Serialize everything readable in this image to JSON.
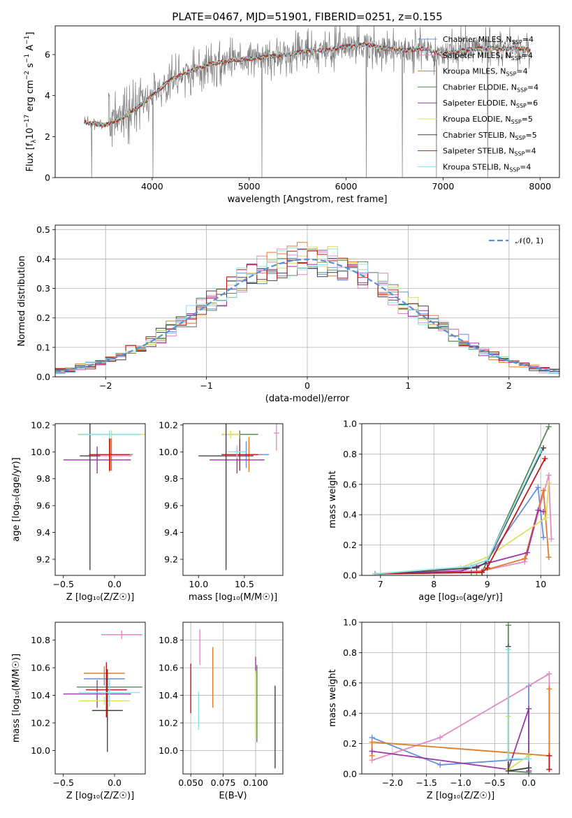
{
  "colors": {
    "Chabrier MILES": "#6a8fdb",
    "Salpeter MILES": "#e58ac2",
    "Kroupa MILES": "#e07b2a",
    "Chabrier ELODIE": "#5a8a5a",
    "Salpeter ELODIE": "#9a37a8",
    "Kroupa ELODIE": "#d8e060",
    "Chabrier STELIB": "#444444",
    "Salpeter STELIB": "#c01818",
    "Kroupa STELIB": "#90e0e8",
    "data": "#7a7a7a",
    "gauss": "#5a8fd8"
  },
  "chart_data": [
    {
      "id": "spectrum",
      "type": "line",
      "title": "PLATE=0467, MJD=51901, FIBERID=0251, z=0.155",
      "xlabel": "wavelength [Angstrom, rest frame]",
      "ylabel": "Flux [f_λ 10^-17 erg cm^-2 s^-1 A^-1]",
      "xlim": [
        3000,
        8200
      ],
      "ylim": [
        0,
        7.4
      ],
      "xticks": [
        "4000",
        "5000",
        "6000",
        "7000",
        "8000"
      ],
      "yticks": [
        "0",
        "2",
        "4",
        "6"
      ],
      "grid": false,
      "legend": "top-right",
      "legend_entries": [
        {
          "model": "Chabrier MILES",
          "nssp": "4"
        },
        {
          "model": "Salpeter MILES",
          "nssp": "4"
        },
        {
          "model": "Kroupa MILES",
          "nssp": "4"
        },
        {
          "model": "Chabrier ELODIE",
          "nssp": "4"
        },
        {
          "model": "Salpeter ELODIE",
          "nssp": "6"
        },
        {
          "model": "Kroupa ELODIE",
          "nssp": "5"
        },
        {
          "model": "Chabrier STELIB",
          "nssp": "5"
        },
        {
          "model": "Salpeter STELIB",
          "nssp": "4"
        },
        {
          "model": "Kroupa STELIB",
          "nssp": "4"
        }
      ],
      "continuum": {
        "x": [
          3300,
          3500,
          3700,
          3900,
          4000,
          4200,
          4400,
          4600,
          4800,
          5000,
          5200,
          5400,
          5600,
          5800,
          6000,
          6200,
          6400,
          6600,
          6800,
          7000,
          7200,
          7400,
          7600,
          7800,
          7900
        ],
        "y": [
          2.7,
          2.55,
          2.9,
          3.6,
          4.0,
          4.8,
          5.2,
          5.55,
          5.7,
          5.8,
          5.9,
          6.0,
          6.2,
          6.2,
          6.4,
          6.5,
          6.3,
          6.2,
          6.3,
          6.0,
          6.2,
          6.3,
          6.3,
          6.3,
          6.2
        ]
      }
    },
    {
      "id": "residuals",
      "type": "histogram",
      "xlabel": "(data-model)/error",
      "ylabel": "Normed distribution",
      "xlim": [
        -2.5,
        2.5
      ],
      "ylim": [
        0,
        0.515
      ],
      "xticks": [
        "−2",
        "−1",
        "0",
        "1",
        "2"
      ],
      "yticks": [
        "0.0",
        "0.1",
        "0.2",
        "0.3",
        "0.4",
        "0.5"
      ],
      "grid": true,
      "legend": "top-right",
      "legend_label": "𝒩(0, 1)",
      "bin_width": 0.1
    },
    {
      "id": "age_vs_Z",
      "type": "errorbar",
      "xlabel": "Z [log₁₀(Z/Z☉)]",
      "ylabel": "age  [log₁₀(age/yr)]",
      "xlim": [
        -0.58,
        0.3
      ],
      "ylim": [
        9.08,
        10.21
      ],
      "xticks": [
        "−0.5",
        "0.0"
      ],
      "yticks": [
        "9.2",
        "9.4",
        "9.6",
        "9.8",
        "10.0",
        "10.2"
      ],
      "points": [
        {
          "model": "Chabrier MILES",
          "x": -0.03,
          "xerr": 0.21,
          "y": 9.98,
          "yerr": 0.12
        },
        {
          "model": "Salpeter MILES",
          "x": -0.05,
          "xerr": 0.22,
          "y": 9.97,
          "yerr": 0.12
        },
        {
          "model": "Kroupa MILES",
          "x": -0.04,
          "xerr": 0.2,
          "y": 9.98,
          "yerr": 0.12
        },
        {
          "model": "Chabrier ELODIE",
          "x": -0.05,
          "xerr": 0.3,
          "y": 10.13,
          "yerr": 0.03
        },
        {
          "model": "Salpeter ELODIE",
          "x": -0.17,
          "xerr": 0.33,
          "y": 9.94,
          "yerr": 0.1
        },
        {
          "model": "Kroupa ELODIE",
          "x": -0.03,
          "xerr": 0.33,
          "y": 10.13,
          "yerr": 0.03
        },
        {
          "model": "Chabrier STELIB",
          "x": -0.24,
          "xerr": 0.1,
          "y": 9.97,
          "yerr": 0.85
        },
        {
          "model": "Salpeter STELIB",
          "x": -0.05,
          "xerr": 0.2,
          "y": 9.98,
          "yerr": 0.12
        },
        {
          "model": "Kroupa STELIB",
          "x": -0.05,
          "xerr": 0.3,
          "y": 10.13,
          "yerr": 0.03
        }
      ]
    },
    {
      "id": "age_vs_mass",
      "type": "errorbar",
      "xlabel": "mass [log₁₀(M/M☉)]",
      "ylabel": "",
      "xlim": [
        9.83,
        10.92
      ],
      "ylim": [
        9.08,
        10.21
      ],
      "xticks": [
        "10.0",
        "10.5"
      ],
      "yticks": [
        "9.2",
        "9.4",
        "9.6",
        "9.8",
        "10.0",
        "10.2"
      ],
      "points": [
        {
          "model": "Chabrier MILES",
          "x": 10.52,
          "xerr": 0.25,
          "y": 9.98,
          "yerr": 0.1
        },
        {
          "model": "Salpeter MILES",
          "x": 10.85,
          "xerr": 0.03,
          "y": 10.14,
          "yerr": 0.13
        },
        {
          "model": "Kroupa MILES",
          "x": 10.55,
          "xerr": 0.12,
          "y": 9.98,
          "yerr": 0.13
        },
        {
          "model": "Chabrier ELODIE",
          "x": 10.45,
          "xerr": 0.2,
          "y": 10.13,
          "yerr": 0.03
        },
        {
          "model": "Salpeter ELODIE",
          "x": 10.42,
          "xerr": 0.3,
          "y": 9.94,
          "yerr": 0.1
        },
        {
          "model": "Kroupa ELODIE",
          "x": 10.35,
          "xerr": 0.1,
          "y": 10.13,
          "yerr": 0.03
        },
        {
          "model": "Chabrier STELIB",
          "x": 10.3,
          "xerr": 0.3,
          "y": 9.97,
          "yerr": 0.85
        },
        {
          "model": "Salpeter STELIB",
          "x": 10.45,
          "xerr": 0.2,
          "y": 9.98,
          "yerr": 0.12
        },
        {
          "model": "Kroupa STELIB",
          "x": 10.42,
          "xerr": 0.1,
          "y": 10.0,
          "yerr": 0.05
        }
      ]
    },
    {
      "id": "massweight_vs_age",
      "type": "line",
      "xlabel": "age  [log₁₀(age/yr)]",
      "ylabel": "mass weight",
      "xlim": [
        6.65,
        10.35
      ],
      "ylim": [
        0,
        1.0
      ],
      "xticks": [
        "7",
        "8",
        "9",
        "10"
      ],
      "yticks": [
        "0.0",
        "0.2",
        "0.4",
        "0.6",
        "0.8",
        "1.0"
      ],
      "grid": true,
      "series": [
        {
          "model": "Chabrier MILES",
          "x": [
            6.9,
            8.6,
            9.0,
            9.95,
            10.05
          ],
          "y": [
            0.01,
            0.05,
            0.1,
            0.58,
            0.25
          ]
        },
        {
          "model": "Salpeter MILES",
          "x": [
            6.9,
            8.9,
            9.7,
            10.15,
            10.2
          ],
          "y": [
            0.01,
            0.03,
            0.09,
            0.66,
            0.24
          ]
        },
        {
          "model": "Kroupa MILES",
          "x": [
            6.9,
            8.8,
            9.7,
            10.05,
            10.15
          ],
          "y": [
            0.01,
            0.02,
            0.11,
            0.56,
            0.12
          ]
        },
        {
          "model": "Chabrier ELODIE",
          "x": [
            6.9,
            8.7,
            8.9,
            10.15
          ],
          "y": [
            0.01,
            0.02,
            0.02,
            0.98
          ]
        },
        {
          "model": "Salpeter ELODIE",
          "x": [
            6.9,
            8.5,
            9.0,
            9.75,
            9.95,
            10.05
          ],
          "y": [
            0.01,
            0.03,
            0.08,
            0.15,
            0.43,
            0.42
          ]
        },
        {
          "model": "Kroupa ELODIE",
          "x": [
            6.9,
            8.5,
            9.0,
            10.1,
            10.15
          ],
          "y": [
            0.01,
            0.05,
            0.12,
            0.38,
            0.61
          ]
        },
        {
          "model": "Chabrier STELIB",
          "x": [
            6.9,
            8.8,
            9.0,
            10.05
          ],
          "y": [
            0.01,
            0.05,
            0.09,
            0.84
          ]
        },
        {
          "model": "Salpeter STELIB",
          "x": [
            6.9,
            8.9,
            9.0,
            10.08
          ],
          "y": [
            0.01,
            0.02,
            0.05,
            0.77
          ]
        },
        {
          "model": "Kroupa STELIB",
          "x": [
            6.9,
            8.7,
            9.0,
            10.0
          ],
          "y": [
            0.01,
            0.06,
            0.1,
            0.82
          ]
        }
      ]
    },
    {
      "id": "mass_vs_Z",
      "type": "errorbar",
      "xlabel": "Z [log₁₀(Z/Z☉)]",
      "ylabel": "mass [log₁₀(M/M☉)]",
      "xlim": [
        -0.58,
        0.3
      ],
      "ylim": [
        9.83,
        10.93
      ],
      "xticks": [
        "−0.5",
        "0.0"
      ],
      "yticks": [
        "10.0",
        "10.2",
        "10.4",
        "10.6",
        "10.8"
      ],
      "points": [
        {
          "model": "Chabrier MILES",
          "x": -0.1,
          "xerr": 0.2,
          "y": 10.52,
          "yerr": 0.05
        },
        {
          "model": "Salpeter MILES",
          "x": 0.07,
          "xerr": 0.2,
          "y": 10.84,
          "yerr": 0.03
        },
        {
          "model": "Kroupa MILES",
          "x": -0.1,
          "xerr": 0.2,
          "y": 10.56,
          "yerr": 0.05
        },
        {
          "model": "Chabrier ELODIE",
          "x": -0.05,
          "xerr": 0.32,
          "y": 10.46,
          "yerr": 0.03
        },
        {
          "model": "Salpeter ELODIE",
          "x": -0.17,
          "xerr": 0.33,
          "y": 10.41,
          "yerr": 0.1
        },
        {
          "model": "Kroupa ELODIE",
          "x": -0.1,
          "xerr": 0.25,
          "y": 10.36,
          "yerr": 0.03
        },
        {
          "model": "Chabrier STELIB",
          "x": -0.07,
          "xerr": 0.15,
          "y": 10.29,
          "yerr": 0.3
        },
        {
          "model": "Salpeter STELIB",
          "x": -0.08,
          "xerr": 0.2,
          "y": 10.44,
          "yerr": 0.2
        },
        {
          "model": "Kroupa STELIB",
          "x": -0.05,
          "xerr": 0.3,
          "y": 10.42,
          "yerr": 0.1
        }
      ]
    },
    {
      "id": "mass_vs_ebv",
      "type": "errorbar",
      "xlabel": "E(B-V)",
      "ylabel": "",
      "xlim": [
        0.044,
        0.121
      ],
      "ylim": [
        9.83,
        10.93
      ],
      "xticks": [
        "0.050",
        "0.075",
        "0.100"
      ],
      "yticks": [
        "10.0",
        "10.2",
        "10.4",
        "10.6",
        "10.8"
      ],
      "points": [
        {
          "model": "Salpeter STELIB",
          "x": 0.05,
          "y": 10.45,
          "yerr": 0.18
        },
        {
          "model": "Kroupa STELIB",
          "x": 0.056,
          "y": 10.29,
          "yerr": 0.14
        },
        {
          "model": "Salpeter MILES",
          "x": 0.057,
          "y": 10.75,
          "yerr": 0.13
        },
        {
          "model": "Kroupa MILES",
          "x": 0.067,
          "y": 10.53,
          "yerr": 0.22
        },
        {
          "model": "Salpeter ELODIE",
          "x": 0.1,
          "y": 10.62,
          "yerr": 0.06
        },
        {
          "model": "Kroupa ELODIE",
          "x": 0.1,
          "y": 10.34,
          "yerr": 0.24
        },
        {
          "model": "Chabrier ELODIE",
          "x": 0.101,
          "y": 10.34,
          "yerr": 0.28
        },
        {
          "model": "Chabrier STELIB",
          "x": 0.115,
          "y": 10.17,
          "yerr": 0.3
        }
      ]
    },
    {
      "id": "massweight_vs_Z",
      "type": "line",
      "xlabel": "Z [log₁₀(Z/Z☉)]",
      "ylabel": "mass weight",
      "xlim": [
        -2.45,
        0.45
      ],
      "ylim": [
        0,
        1.0
      ],
      "xticks": [
        "−2.0",
        "−1.5",
        "−1.0",
        "−0.5",
        "0.0"
      ],
      "yticks": [
        "0.0",
        "0.2",
        "0.4",
        "0.6",
        "0.8",
        "1.0"
      ],
      "grid": true,
      "series": [
        {
          "model": "Chabrier MILES",
          "x": [
            -2.3,
            -1.3,
            0.0,
            0.0
          ],
          "y": [
            0.24,
            0.06,
            0.1,
            0.58
          ]
        },
        {
          "model": "Salpeter MILES",
          "x": [
            -2.3,
            -1.3,
            0.3,
            0.3
          ],
          "y": [
            0.09,
            0.24,
            0.66,
            0.03
          ]
        },
        {
          "model": "Kroupa MILES",
          "x": [
            -2.3,
            -2.3,
            0.3,
            0.3
          ],
          "y": [
            0.12,
            0.21,
            0.12,
            0.56
          ]
        },
        {
          "model": "Chabrier ELODIE",
          "x": [
            -0.3,
            -0.3,
            0.0
          ],
          "y": [
            0.98,
            0.02,
            0.01
          ]
        },
        {
          "model": "Salpeter ELODIE",
          "x": [
            -2.3,
            -0.3,
            0.0,
            0.0
          ],
          "y": [
            0.15,
            0.03,
            0.43,
            0.02
          ]
        },
        {
          "model": "Kroupa ELODIE",
          "x": [
            -0.3,
            -0.3,
            0.0
          ],
          "y": [
            0.38,
            0.03,
            0.12
          ]
        },
        {
          "model": "Chabrier STELIB",
          "x": [
            -0.3,
            -0.3,
            0.0
          ],
          "y": [
            0.84,
            0.02,
            0.04
          ]
        },
        {
          "model": "Salpeter STELIB",
          "x": [
            0.3,
            0.3
          ],
          "y": [
            0.03,
            0.12
          ]
        },
        {
          "model": "Kroupa STELIB",
          "x": [
            -0.3,
            -0.3,
            0.0
          ],
          "y": [
            0.82,
            0.1,
            0.1
          ]
        }
      ]
    }
  ]
}
